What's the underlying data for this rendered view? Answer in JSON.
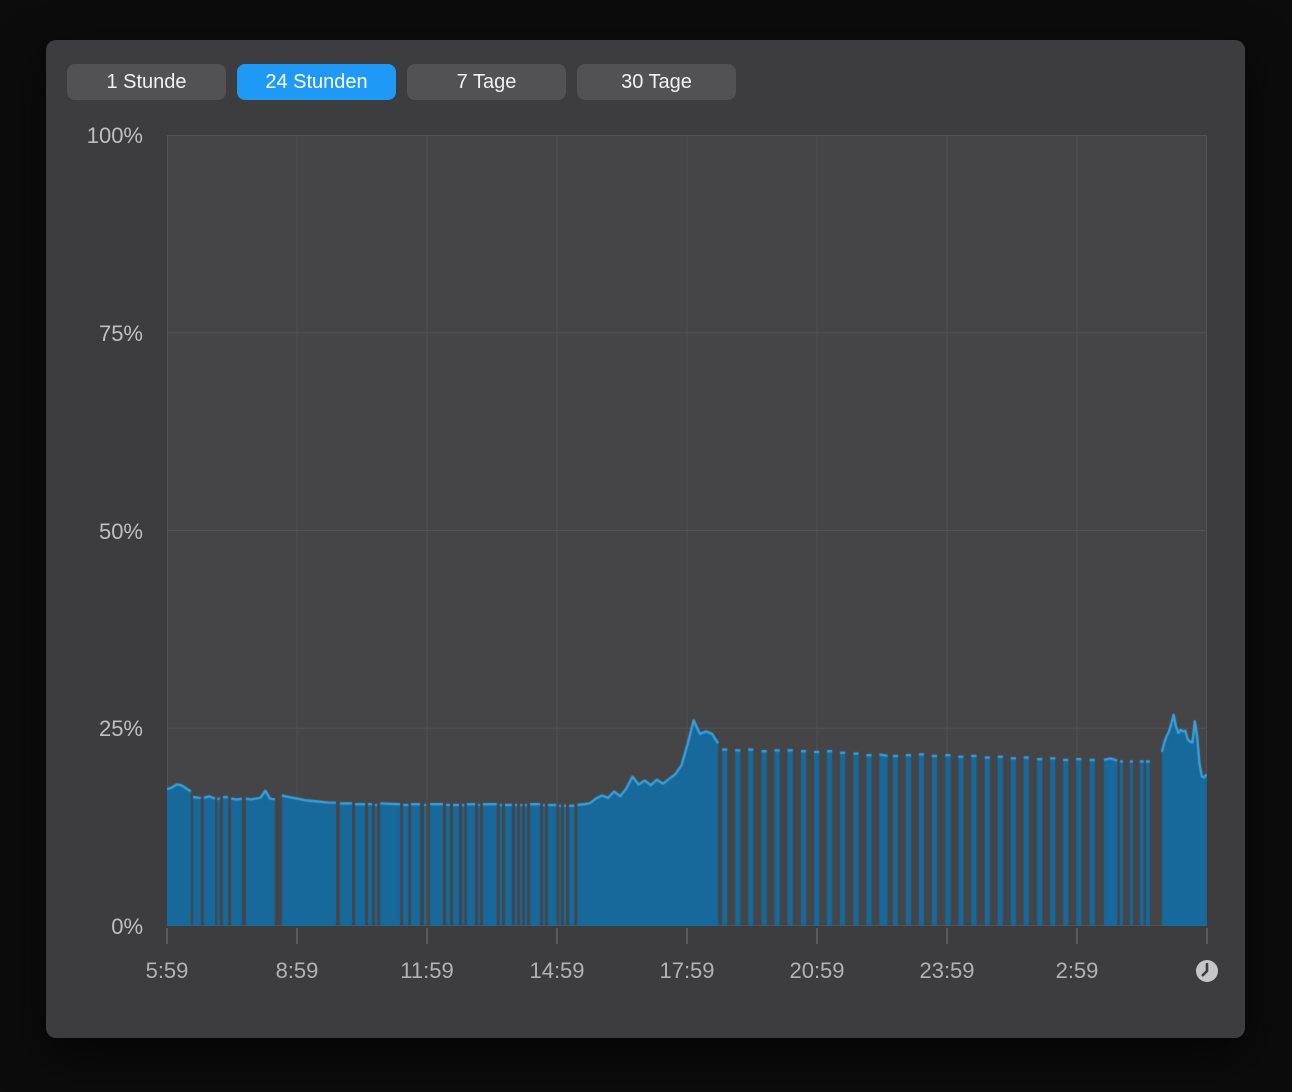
{
  "toolbar": {
    "buttons": [
      {
        "label": "1 Stunde",
        "selected": false
      },
      {
        "label": "24 Stunden",
        "selected": true
      },
      {
        "label": "7 Tage",
        "selected": false
      },
      {
        "label": "30 Tage",
        "selected": false
      }
    ],
    "selected_color": "#1e99f6",
    "button_color": "#525254"
  },
  "icons": {
    "clock": "clock-icon"
  },
  "colors": {
    "outer_background": "#0c0c0c",
    "panel_background": "#3d3d3f",
    "plot_background": "#454547",
    "gridline": "#515153",
    "tick": "#5a5a5c",
    "y_label": "#bfbfc1",
    "x_label": "#b2b2b4",
    "area_fill": "#17699b",
    "area_line": "#38a1dc",
    "clock_icon": "#c6c6c8"
  },
  "chart_data": {
    "type": "area",
    "title": "",
    "xlabel": "",
    "ylabel": "",
    "unit": "%",
    "ylim": [
      0,
      100
    ],
    "x_range_hours": [
      0,
      24
    ],
    "grid": true,
    "legend": "none",
    "y_tick_labels": [
      "100%",
      "75%",
      "50%",
      "25%",
      "0%"
    ],
    "x_tick_labels": [
      "5:59",
      "8:59",
      "11:59",
      "14:59",
      "17:59",
      "20:59",
      "23:59",
      "2:59"
    ],
    "x_tick_count": 9,
    "series_name": "usage-percent",
    "fill_color": "#17699b",
    "line_color": "#38a1dc",
    "segments": [
      {
        "t": [
          0.0,
          0.55
        ],
        "v": [
          17.3,
          17.5,
          17.9,
          17.8,
          17.4,
          17.0
        ]
      },
      {
        "t": [
          0.6,
          0.78
        ],
        "v": [
          16.3,
          16.2
        ]
      },
      {
        "t": [
          0.85,
          1.11
        ],
        "v": [
          16.2,
          16.4,
          16.1
        ]
      },
      {
        "t": [
          1.16,
          1.22
        ],
        "v": [
          16.1
        ]
      },
      {
        "t": [
          1.29,
          1.41
        ],
        "v": [
          16.3
        ]
      },
      {
        "t": [
          1.48,
          1.73
        ],
        "v": [
          16.1,
          16.0,
          16.1
        ]
      },
      {
        "t": [
          1.82,
          2.49
        ],
        "v": [
          16.1,
          16.0,
          16.1,
          16.2,
          17.1,
          16.1,
          16.0
        ]
      },
      {
        "t": [
          2.65,
          3.9
        ],
        "v": [
          16.5,
          16.3,
          16.1,
          15.9,
          15.8,
          15.7,
          15.6,
          15.6
        ]
      },
      {
        "t": [
          3.99,
          4.27
        ],
        "v": [
          15.5
        ]
      },
      {
        "t": [
          4.34,
          4.57
        ],
        "v": [
          15.4
        ]
      },
      {
        "t": [
          4.64,
          4.73
        ],
        "v": [
          15.4
        ]
      },
      {
        "t": [
          4.8,
          4.85
        ],
        "v": [
          15.3
        ]
      },
      {
        "t": [
          4.92,
          5.38
        ],
        "v": [
          15.5,
          15.4
        ]
      },
      {
        "t": [
          5.45,
          5.57
        ],
        "v": [
          15.3
        ]
      },
      {
        "t": [
          5.63,
          5.84
        ],
        "v": [
          15.4
        ]
      },
      {
        "t": [
          5.93,
          5.98
        ],
        "v": [
          15.3
        ]
      },
      {
        "t": [
          6.07,
          6.37
        ],
        "v": [
          15.4
        ]
      },
      {
        "t": [
          6.44,
          6.53
        ],
        "v": [
          15.3
        ]
      },
      {
        "t": [
          6.6,
          6.74
        ],
        "v": [
          15.3
        ]
      },
      {
        "t": [
          6.81,
          6.86
        ],
        "v": [
          15.3
        ]
      },
      {
        "t": [
          6.92,
          7.11
        ],
        "v": [
          15.4
        ]
      },
      {
        "t": [
          7.18,
          7.22
        ],
        "v": [
          15.3
        ]
      },
      {
        "t": [
          7.29,
          7.61
        ],
        "v": [
          15.4
        ]
      },
      {
        "t": [
          7.68,
          7.73
        ],
        "v": [
          15.3
        ]
      },
      {
        "t": [
          7.8,
          7.96
        ],
        "v": [
          15.3
        ]
      },
      {
        "t": [
          8.03,
          8.08
        ],
        "v": [
          15.3
        ]
      },
      {
        "t": [
          8.15,
          8.2
        ],
        "v": [
          15.3
        ]
      },
      {
        "t": [
          8.26,
          8.31
        ],
        "v": [
          15.3
        ]
      },
      {
        "t": [
          8.38,
          8.61
        ],
        "v": [
          15.4
        ]
      },
      {
        "t": [
          8.68,
          8.72
        ],
        "v": [
          15.3
        ]
      },
      {
        "t": [
          8.79,
          8.98
        ],
        "v": [
          15.3
        ]
      },
      {
        "t": [
          9.05,
          9.09
        ],
        "v": [
          15.2
        ]
      },
      {
        "t": [
          9.16,
          9.21
        ],
        "v": [
          15.2
        ]
      },
      {
        "t": [
          9.28,
          9.4
        ],
        "v": [
          15.2
        ]
      },
      {
        "t": [
          9.47,
          12.72
        ],
        "v": [
          15.3,
          15.4,
          15.5,
          16.1,
          16.5,
          16.2,
          17.0,
          16.4,
          17.4,
          18.9,
          17.9,
          18.4,
          17.8,
          18.5,
          18.0,
          18.6,
          19.2,
          20.3,
          23.0,
          26.0,
          24.3,
          24.6,
          24.3,
          23.1
        ]
      },
      {
        "t": [
          12.81,
          12.93
        ],
        "v": [
          22.3
        ]
      },
      {
        "t": [
          13.11,
          13.23
        ],
        "v": [
          22.2
        ]
      },
      {
        "t": [
          13.41,
          13.53
        ],
        "v": [
          22.3
        ]
      },
      {
        "t": [
          13.72,
          13.84
        ],
        "v": [
          22.1
        ]
      },
      {
        "t": [
          14.02,
          14.14
        ],
        "v": [
          22.2
        ]
      },
      {
        "t": [
          14.32,
          14.44
        ],
        "v": [
          22.2
        ]
      },
      {
        "t": [
          14.63,
          14.75
        ],
        "v": [
          22.1
        ]
      },
      {
        "t": [
          14.93,
          15.05
        ],
        "v": [
          22.0
        ]
      },
      {
        "t": [
          15.23,
          15.35
        ],
        "v": [
          22.1
        ]
      },
      {
        "t": [
          15.53,
          15.65
        ],
        "v": [
          21.9
        ]
      },
      {
        "t": [
          15.84,
          15.96
        ],
        "v": [
          21.8
        ]
      },
      {
        "t": [
          16.14,
          16.26
        ],
        "v": [
          21.6
        ]
      },
      {
        "t": [
          16.44,
          16.63
        ],
        "v": [
          21.7,
          21.5
        ]
      },
      {
        "t": [
          16.75,
          16.87
        ],
        "v": [
          21.5
        ]
      },
      {
        "t": [
          17.05,
          17.17
        ],
        "v": [
          21.6
        ]
      },
      {
        "t": [
          17.35,
          17.47
        ],
        "v": [
          21.7
        ]
      },
      {
        "t": [
          17.65,
          17.77
        ],
        "v": [
          21.5
        ]
      },
      {
        "t": [
          17.96,
          18.08
        ],
        "v": [
          21.6
        ]
      },
      {
        "t": [
          18.26,
          18.38
        ],
        "v": [
          21.4
        ]
      },
      {
        "t": [
          18.56,
          18.68
        ],
        "v": [
          21.5
        ]
      },
      {
        "t": [
          18.87,
          18.99
        ],
        "v": [
          21.3
        ]
      },
      {
        "t": [
          19.17,
          19.29
        ],
        "v": [
          21.4
        ]
      },
      {
        "t": [
          19.47,
          19.59
        ],
        "v": [
          21.2
        ]
      },
      {
        "t": [
          19.77,
          19.89
        ],
        "v": [
          21.3
        ]
      },
      {
        "t": [
          20.08,
          20.2
        ],
        "v": [
          21.1
        ]
      },
      {
        "t": [
          20.38,
          20.5
        ],
        "v": [
          21.2
        ]
      },
      {
        "t": [
          20.68,
          20.8
        ],
        "v": [
          21.0
        ]
      },
      {
        "t": [
          20.98,
          21.1
        ],
        "v": [
          21.1
        ]
      },
      {
        "t": [
          21.29,
          21.41
        ],
        "v": [
          21.0
        ]
      },
      {
        "t": [
          21.62,
          21.93
        ],
        "v": [
          21.0,
          21.2,
          20.9
        ]
      },
      {
        "t": [
          21.99,
          22.06
        ],
        "v": [
          20.8
        ]
      },
      {
        "t": [
          22.22,
          22.29
        ],
        "v": [
          20.8
        ]
      },
      {
        "t": [
          22.45,
          22.54
        ],
        "v": [
          20.8
        ]
      },
      {
        "t": [
          22.59,
          22.68
        ],
        "v": [
          20.8
        ]
      },
      {
        "t": [
          22.96,
          23.99
        ],
        "v": [
          22.0,
          23.2,
          24.0,
          24.6,
          25.6,
          26.7,
          25.2,
          24.4,
          24.8,
          24.6,
          24.7,
          23.6,
          23.3,
          23.2,
          25.9,
          24.0,
          20.5,
          18.9,
          18.8,
          19.2
        ]
      }
    ]
  }
}
